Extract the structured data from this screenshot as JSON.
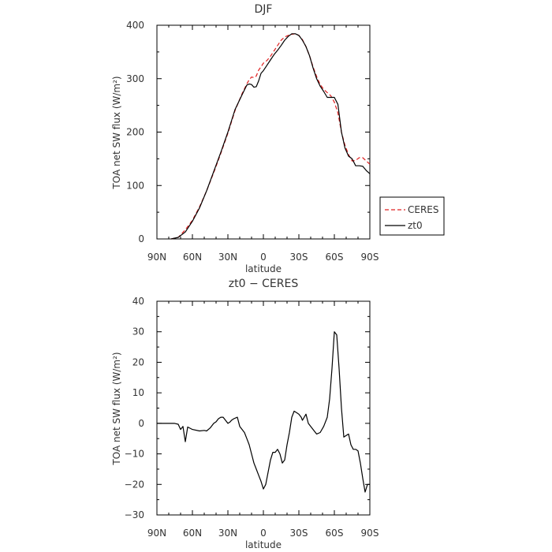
{
  "chart_data": [
    {
      "type": "line",
      "title": "DJF",
      "xlabel": "latitude",
      "ylabel": "TOA net SW flux (W/m²)",
      "xlim": [
        90,
        -90
      ],
      "ylim": [
        0,
        400
      ],
      "xticks": [
        90,
        60,
        30,
        0,
        -30,
        -60,
        -90
      ],
      "xticklabels": [
        "90N",
        "60N",
        "30N",
        "0",
        "30S",
        "60S",
        "90S"
      ],
      "yticks": [
        0,
        100,
        200,
        300,
        400
      ],
      "yticklabels": [
        "0",
        "100",
        "200",
        "300",
        "400"
      ],
      "legend_placement": "right",
      "series": [
        {
          "name": "CERES",
          "color": "#e02020",
          "dash": "dashed",
          "x": [
            78,
            72,
            66,
            60,
            54,
            48,
            42,
            36,
            30,
            24,
            18,
            14,
            12,
            10,
            8,
            6,
            4,
            2,
            0,
            -3,
            -6,
            -9,
            -12,
            -15,
            -18,
            -21,
            -24,
            -27,
            -30,
            -33,
            -36,
            -39,
            -42,
            -45,
            -48,
            -51,
            -54,
            -57,
            -60,
            -63,
            -66,
            -69,
            -72,
            -75,
            -78,
            -81,
            -84,
            -87,
            -90
          ],
          "y": [
            0,
            3,
            17,
            35,
            60,
            90,
            124,
            160,
            198,
            240,
            272,
            290,
            298,
            303,
            302,
            305,
            316,
            322,
            329,
            334,
            342,
            352,
            362,
            372,
            378,
            381,
            383,
            384,
            381,
            373,
            360,
            343,
            322,
            304,
            289,
            280,
            274,
            268,
            256,
            236,
            200,
            175,
            158,
            146,
            147,
            152,
            152,
            146,
            140
          ]
        },
        {
          "name": "zt0",
          "color": "#000000",
          "dash": "solid",
          "x": [
            78,
            72,
            66,
            60,
            54,
            48,
            42,
            36,
            30,
            24,
            18,
            14,
            12,
            10,
            8,
            6,
            4,
            2,
            0,
            -3,
            -6,
            -9,
            -12,
            -15,
            -18,
            -21,
            -24,
            -27,
            -30,
            -33,
            -36,
            -39,
            -42,
            -45,
            -48,
            -51,
            -54,
            -57,
            -60,
            -63,
            -66,
            -69,
            -72,
            -75,
            -78,
            -81,
            -84,
            -87,
            -90
          ],
          "y": [
            0,
            3,
            13,
            33,
            58,
            90,
            126,
            162,
            200,
            242,
            270,
            288,
            290,
            289,
            284,
            285,
            296,
            310,
            315,
            325,
            335,
            345,
            353,
            362,
            372,
            379,
            384,
            384,
            381,
            372,
            360,
            343,
            320,
            300,
            286,
            276,
            265,
            265,
            265,
            252,
            200,
            170,
            155,
            150,
            137,
            137,
            136,
            128,
            122
          ]
        }
      ]
    },
    {
      "type": "line",
      "title": "zt0 − CERES",
      "xlabel": "latitude",
      "ylabel": "TOA net SW flux (W/m²)",
      "xlim": [
        90,
        -90
      ],
      "ylim": [
        -30,
        40
      ],
      "xticks": [
        90,
        60,
        30,
        0,
        -30,
        -60,
        -90
      ],
      "xticklabels": [
        "90N",
        "60N",
        "30N",
        "0",
        "30S",
        "60S",
        "90S"
      ],
      "yticks": [
        -30,
        -20,
        -10,
        0,
        10,
        20,
        30,
        40
      ],
      "yticklabels": [
        "−30",
        "−20",
        "−10",
        "0",
        "10",
        "20",
        "30",
        "40"
      ],
      "series": [
        {
          "color": "#000000",
          "dash": "solid",
          "x": [
            90,
            75,
            72,
            70,
            68,
            66,
            64,
            60,
            54,
            50,
            48,
            45,
            42,
            40,
            38,
            36,
            34,
            32,
            30,
            28,
            27,
            25,
            22,
            20,
            18,
            16,
            14,
            12,
            10,
            8,
            6,
            4,
            2,
            0,
            -2,
            -4,
            -6,
            -8,
            -10,
            -12,
            -14,
            -16,
            -18,
            -20,
            -22,
            -24,
            -26,
            -28,
            -30,
            -32,
            -33,
            -36,
            -38,
            -42,
            -45,
            -48,
            -51,
            -54,
            -56,
            -58,
            -60,
            -62,
            -64,
            -66,
            -68,
            -70,
            -72,
            -74,
            -76,
            -78,
            -80,
            -82,
            -84,
            -86,
            -88,
            -90
          ],
          "y": [
            0,
            0,
            -0.3,
            -2,
            -1,
            -6,
            -1.2,
            -2,
            -2.5,
            -2.3,
            -2.5,
            -1.5,
            0,
            0.5,
            1.5,
            2,
            2,
            1,
            0,
            0.5,
            1,
            1.5,
            2,
            -1,
            -2,
            -3,
            -5,
            -7,
            -10,
            -13,
            -15,
            -17,
            -19,
            -21.5,
            -20,
            -16,
            -12,
            -9.5,
            -9.5,
            -8.5,
            -10,
            -13,
            -12,
            -7,
            -3,
            2,
            4,
            3.5,
            3,
            2,
            1,
            3,
            0,
            -2,
            -3.5,
            -3,
            -1,
            2,
            8,
            18,
            30,
            29,
            18,
            5,
            -4.5,
            -4,
            -3.5,
            -7,
            -8.5,
            -8.5,
            -9,
            -13,
            -18,
            -22.5,
            -20,
            -20
          ]
        }
      ]
    }
  ]
}
